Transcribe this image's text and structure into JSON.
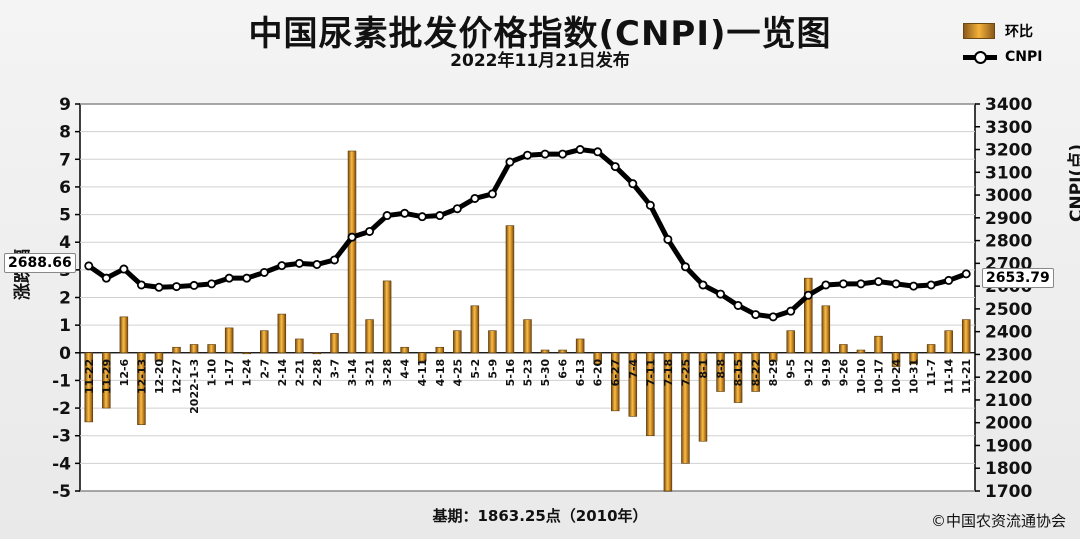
{
  "title": "中国尿素批发价格指数(CNPI)一览图",
  "subtitle": "2022年11月21日发布",
  "legend": {
    "bar_label": "环比",
    "line_label": "CNPI"
  },
  "y_left_label": "涨跌幅",
  "y_right_label": "CNPI(点)",
  "callout_left": "2688.66",
  "callout_right": "2653.79",
  "footer_base": "基期：1863.25点（2010年）",
  "footer_copyright": "©中国农资流通协会",
  "chart_data": {
    "type": "bar",
    "categories": [
      "11-22",
      "11-29",
      "12-6",
      "12-13",
      "12-20",
      "12-27",
      "2022-1-3",
      "1-10",
      "1-17",
      "1-24",
      "2-7",
      "2-14",
      "2-21",
      "2-28",
      "3-7",
      "3-14",
      "3-21",
      "3-28",
      "4-4",
      "4-11",
      "4-18",
      "4-25",
      "5-2",
      "5-9",
      "5-16",
      "5-23",
      "5-30",
      "6-6",
      "6-13",
      "6-20",
      "6-27",
      "7-4",
      "7-11",
      "7-18",
      "7-25",
      "8-1",
      "8-8",
      "8-15",
      "8-22",
      "8-29",
      "9-5",
      "9-12",
      "9-19",
      "9-26",
      "10-10",
      "10-17",
      "10-24",
      "10-31",
      "11-7",
      "11-14",
      "11-21"
    ],
    "series": [
      {
        "name": "环比",
        "type": "bar",
        "axis": "left",
        "color": "#f0a830",
        "values": [
          -2.5,
          -2.0,
          1.3,
          -2.6,
          -0.3,
          0.2,
          0.3,
          0.3,
          0.9,
          0.0,
          0.8,
          1.4,
          0.5,
          0.0,
          0.7,
          7.3,
          1.2,
          2.6,
          0.2,
          -0.3,
          0.2,
          0.8,
          1.7,
          0.8,
          4.6,
          1.2,
          0.1,
          0.1,
          0.5,
          -0.4,
          -2.1,
          -2.3,
          -3.0,
          -5.0,
          -4.0,
          -3.2,
          -1.4,
          -1.8,
          -1.4,
          -0.3,
          0.8,
          2.7,
          1.7,
          0.3,
          0.1,
          0.6,
          -0.5,
          -0.4,
          0.3,
          0.8,
          1.2
        ]
      },
      {
        "name": "CNPI",
        "type": "line",
        "axis": "right",
        "color": "#000000",
        "values": [
          2688.66,
          2635,
          2675,
          2605,
          2595,
          2598,
          2603,
          2610,
          2635,
          2635,
          2660,
          2690,
          2700,
          2695,
          2715,
          2815,
          2840,
          2910,
          2920,
          2905,
          2910,
          2940,
          2985,
          3005,
          3145,
          3175,
          3180,
          3180,
          3200,
          3190,
          3125,
          3050,
          2955,
          2805,
          2685,
          2605,
          2565,
          2515,
          2475,
          2465,
          2490,
          2560,
          2605,
          2610,
          2610,
          2620,
          2610,
          2600,
          2605,
          2625,
          2653.79
        ]
      }
    ],
    "ylim_left": [
      -5,
      9
    ],
    "yticks_left": [
      -5,
      -4,
      -3,
      -2,
      -1,
      0,
      1,
      2,
      3,
      4,
      5,
      6,
      7,
      8,
      9
    ],
    "ylim_right": [
      1700,
      3400
    ],
    "yticks_right": [
      1700,
      1800,
      1900,
      2000,
      2100,
      2200,
      2300,
      2400,
      2500,
      2600,
      2700,
      2800,
      2900,
      3000,
      3100,
      3200,
      3300,
      3400
    ],
    "grid": "horizontal",
    "legend_position": "top-right"
  }
}
